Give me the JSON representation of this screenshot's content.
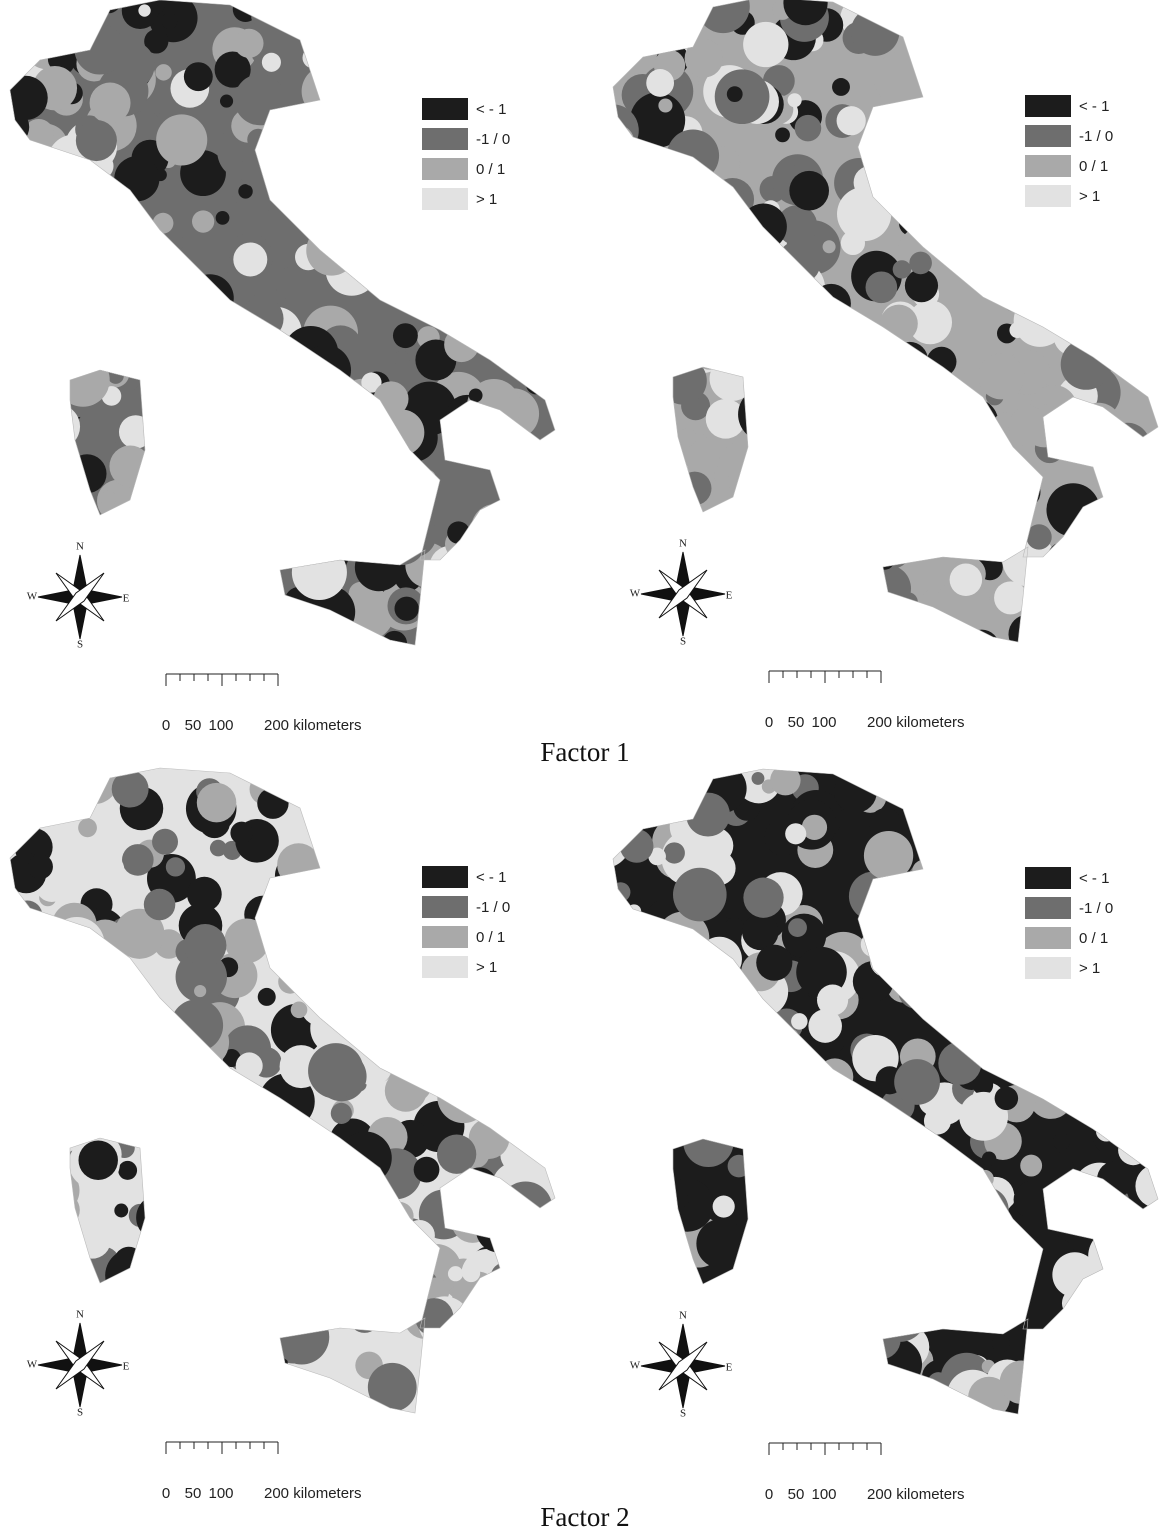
{
  "panels": [
    {
      "caption": "Factor 1",
      "maps": [
        {
          "legend": [
            {
              "label": "< - 1",
              "color": "#1c1c1c"
            },
            {
              "label": "-1 / 0",
              "color": "#6e6e6e"
            },
            {
              "label": "0 / 1",
              "color": "#a9a9a9"
            },
            {
              "label": "> 1",
              "color": "#e2e2e2"
            }
          ],
          "compass": [
            "N",
            "S",
            "W",
            "E"
          ],
          "scale_labels": [
            "0",
            "50",
            "100",
            "200 kilometers"
          ]
        },
        {
          "legend": [
            {
              "label": "< - 1",
              "color": "#1c1c1c"
            },
            {
              "label": "-1 / 0",
              "color": "#6e6e6e"
            },
            {
              "label": "0 / 1",
              "color": "#a9a9a9"
            },
            {
              "label": "> 1",
              "color": "#e2e2e2"
            }
          ],
          "compass": [
            "N",
            "S",
            "W",
            "E"
          ],
          "scale_labels": [
            "0",
            "50",
            "100",
            "200 kilometers"
          ]
        }
      ]
    },
    {
      "caption": "Factor 2",
      "maps": [
        {
          "legend": [
            {
              "label": "< - 1",
              "color": "#1c1c1c"
            },
            {
              "label": "-1 / 0",
              "color": "#6e6e6e"
            },
            {
              "label": "0 / 1",
              "color": "#a9a9a9"
            },
            {
              "label": "> 1",
              "color": "#e2e2e2"
            }
          ],
          "compass": [
            "N",
            "S",
            "W",
            "E"
          ],
          "scale_labels": [
            "0",
            "50",
            "100",
            "200 kilometers"
          ]
        },
        {
          "legend": [
            {
              "label": "< - 1",
              "color": "#1c1c1c"
            },
            {
              "label": "-1 / 0",
              "color": "#6e6e6e"
            },
            {
              "label": "0 / 1",
              "color": "#a9a9a9"
            },
            {
              "label": "> 1",
              "color": "#e2e2e2"
            }
          ],
          "compass": [
            "N",
            "S",
            "W",
            "E"
          ],
          "scale_labels": [
            "0",
            "50",
            "100",
            "200 kilometers"
          ]
        }
      ]
    }
  ]
}
